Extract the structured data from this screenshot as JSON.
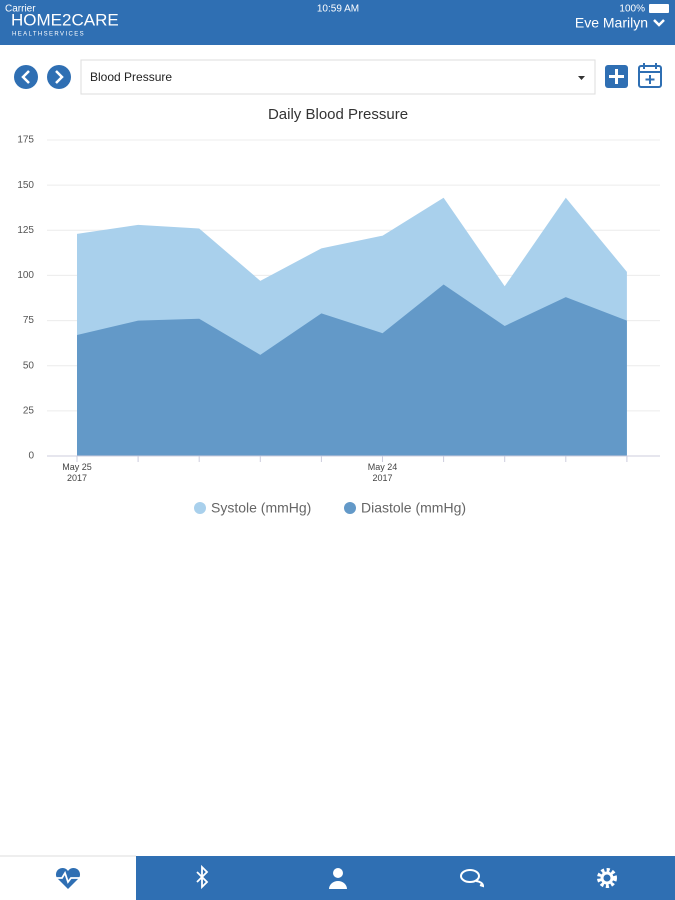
{
  "status_bar": {
    "carrier": "Carrier",
    "time": "10:59 AM",
    "battery": "100%"
  },
  "header": {
    "logo": "HOME2CARE",
    "logo_sub": "HEALTHSERVICES",
    "user": "Eve Marilyn"
  },
  "toolbar": {
    "selector": "Blood Pressure"
  },
  "chart_data": {
    "type": "area",
    "title": "Daily Blood Pressure",
    "categories": [
      "May 25\n2017",
      null,
      null,
      null,
      null,
      "May 24\n2017",
      null,
      null,
      null,
      null
    ],
    "series": [
      {
        "name": "Systole (mmHg)",
        "color": "#a9d0ec",
        "values": [
          123,
          128,
          126,
          97,
          115,
          122,
          143,
          94,
          143,
          102
        ]
      },
      {
        "name": "Diastole (mmHg)",
        "color": "#6399c8",
        "values": [
          67,
          75,
          76,
          56,
          79,
          68,
          95,
          72,
          88,
          75
        ]
      }
    ],
    "ylim": [
      0,
      175
    ],
    "yticks": [
      0,
      25,
      50,
      75,
      100,
      125,
      150,
      175
    ],
    "grid": true,
    "legend": "bottom"
  }
}
